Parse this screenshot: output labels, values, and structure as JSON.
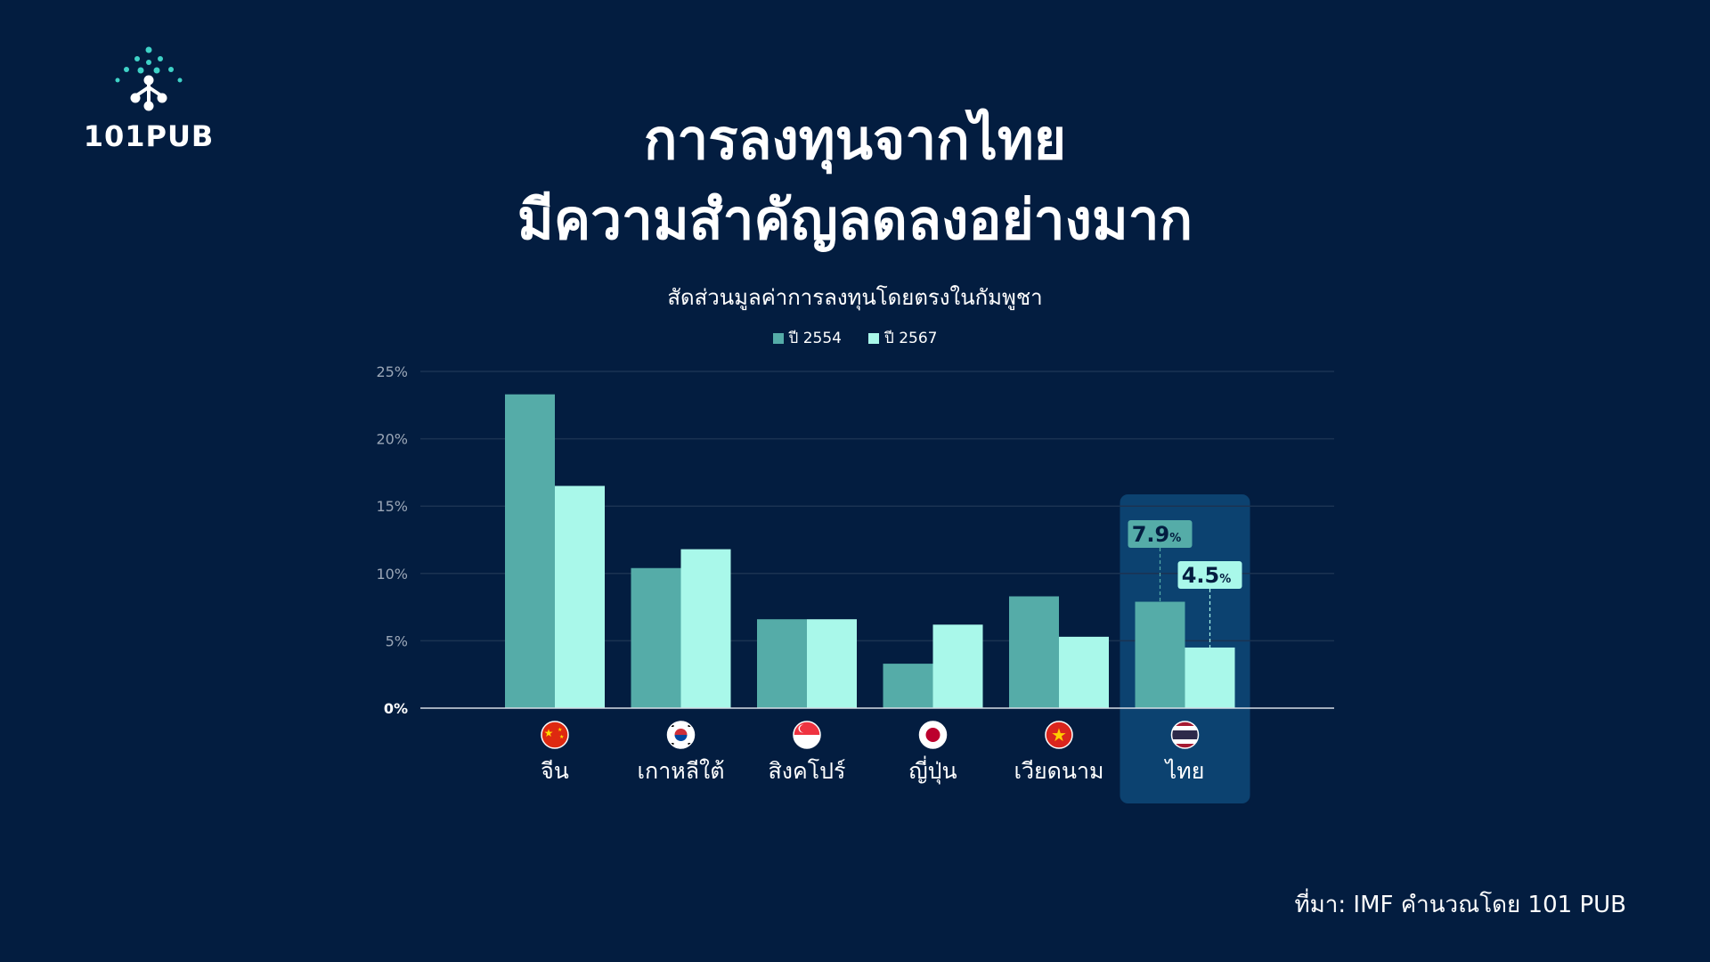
{
  "brand": {
    "logo_text": "101PUB",
    "logo_icon": "network-tree-icon"
  },
  "colors": {
    "background": "#031d40",
    "series_2554": "#55aca8",
    "series_2567": "#a9f8ea",
    "highlight": "#0c4270",
    "grid": "#1b3352",
    "axis_text": "#9aa6b6"
  },
  "chart_data": {
    "type": "bar",
    "title": "การลงทุนจากไทย\nมีความสำคัญลดลงอย่างมาก",
    "subtitle": "สัดส่วนมูลค่าการลงทุนโดยตรงในกัมพูชา",
    "categories": [
      "จีน",
      "เกาหลีใต้",
      "สิงคโปร์",
      "ญี่ปุ่น",
      "เวียดนาม",
      "ไทย"
    ],
    "category_flags": [
      "china-flag-icon",
      "south-korea-flag-icon",
      "singapore-flag-icon",
      "japan-flag-icon",
      "vietnam-flag-icon",
      "thailand-flag-icon"
    ],
    "series": [
      {
        "name": "ปี 2554",
        "values": [
          23.3,
          10.4,
          6.6,
          3.3,
          8.3,
          7.9
        ]
      },
      {
        "name": "ปี 2567",
        "values": [
          16.5,
          11.8,
          6.6,
          6.2,
          5.3,
          4.5
        ]
      }
    ],
    "ylim": [
      0,
      25
    ],
    "yticks": [
      "0%",
      "5%",
      "10%",
      "15%",
      "20%",
      "25%"
    ],
    "ytick_values": [
      0,
      5,
      10,
      15,
      20,
      25
    ],
    "grid": true,
    "legend_position": "top-center",
    "highlight_category": "ไทย",
    "annotations": [
      {
        "series": "ปี 2554",
        "category": "ไทย",
        "value_text": "7.9",
        "unit": "%"
      },
      {
        "series": "ปี 2567",
        "category": "ไทย",
        "value_text": "4.5",
        "unit": "%"
      }
    ]
  },
  "source": "ที่มา: IMF คำนวณโดย 101 PUB"
}
